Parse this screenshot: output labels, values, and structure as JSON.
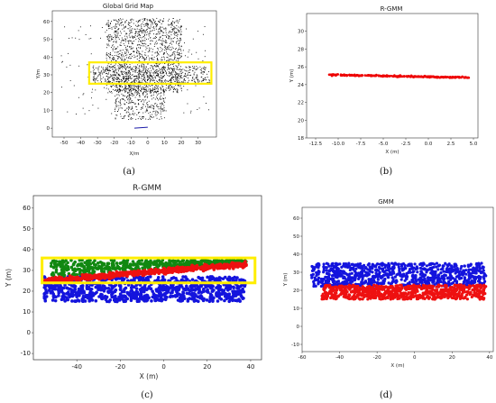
{
  "chart_data": [
    {
      "id": "a",
      "caption": "(a)",
      "type": "scatter",
      "title": "Global Grid Map",
      "xlabel": "X/m",
      "ylabel": "Y/m",
      "xlim": [
        -57,
        41
      ],
      "ylim": [
        -5,
        66
      ],
      "xticks": [
        -50,
        -40,
        -30,
        -20,
        -10,
        0,
        10,
        20,
        30
      ],
      "yticks": [
        0,
        10,
        20,
        30,
        40,
        50,
        60
      ],
      "point_color": "#000000",
      "highlight_color": "#ffee00",
      "highlight_box": {
        "x": [
          -35,
          38
        ],
        "y": [
          25,
          37
        ]
      },
      "trajectory": {
        "color": "#1a1aa8",
        "x": [
          -8,
          0
        ],
        "y": [
          0.0,
          0.5
        ]
      }
    },
    {
      "id": "b",
      "caption": "(b)",
      "type": "scatter",
      "title": "R-GMM",
      "xlabel": "X (m)",
      "ylabel": "Y (m)",
      "xlim": [
        -13.5,
        5.5
      ],
      "ylim": [
        18,
        32
      ],
      "xticks": [
        -12.5,
        -10.0,
        -7.5,
        -5.0,
        -2.5,
        0.0,
        2.5,
        5.0
      ],
      "yticks": [
        18,
        20,
        22,
        24,
        26,
        28,
        30
      ],
      "series": [
        {
          "color": "#ee0000",
          "x": [
            -11,
            4.5
          ],
          "y": [
            25.1,
            24.8
          ]
        }
      ]
    },
    {
      "id": "c",
      "caption": "(c)",
      "type": "scatter",
      "title": "R-GMM",
      "xlabel": "X (m)",
      "ylabel": "Y (m)",
      "xlim": [
        -60,
        45
      ],
      "ylim": [
        -13,
        66
      ],
      "xticks": [
        -40,
        -20,
        0,
        20,
        40
      ],
      "yticks": [
        -10,
        0,
        10,
        20,
        30,
        40,
        50,
        60
      ],
      "highlight_color": "#ffee00",
      "highlight_box": {
        "x": [
          -56,
          42
        ],
        "y": [
          24,
          36
        ]
      },
      "series": [
        {
          "color": "#1414dd",
          "x": [
            -55,
            38
          ],
          "y": [
            15,
            27
          ]
        },
        {
          "color": "#ee1111",
          "x": [
            -55,
            38
          ],
          "y": [
            25,
            33
          ],
          "slope_from": 25,
          "slope_to": 33
        },
        {
          "color": "#118811",
          "x": [
            -52,
            38
          ],
          "y": [
            28,
            35
          ]
        }
      ]
    },
    {
      "id": "d",
      "caption": "(d)",
      "type": "scatter",
      "title": "GMM",
      "xlabel": "X (m)",
      "ylabel": "Y (m)",
      "xlim": [
        -60,
        42
      ],
      "ylim": [
        -14,
        66
      ],
      "xticks": [
        -60,
        -40,
        -20,
        0,
        20,
        40
      ],
      "yticks": [
        -10,
        0,
        10,
        20,
        30,
        40,
        50,
        60
      ],
      "series": [
        {
          "color": "#1414dd",
          "x": [
            -55,
            38
          ],
          "y": [
            22,
            35
          ]
        },
        {
          "color": "#ee1111",
          "x": [
            -50,
            38
          ],
          "y": [
            15,
            23
          ]
        }
      ]
    }
  ]
}
